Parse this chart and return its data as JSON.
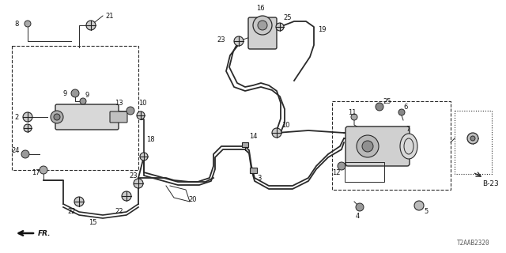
{
  "bg_color": "#ffffff",
  "line_color": "#2a2a2a",
  "diagram_id": "T2AAB2320",
  "ref_label": "B-23",
  "fig_w": 6.4,
  "fig_h": 3.2,
  "dpi": 100
}
